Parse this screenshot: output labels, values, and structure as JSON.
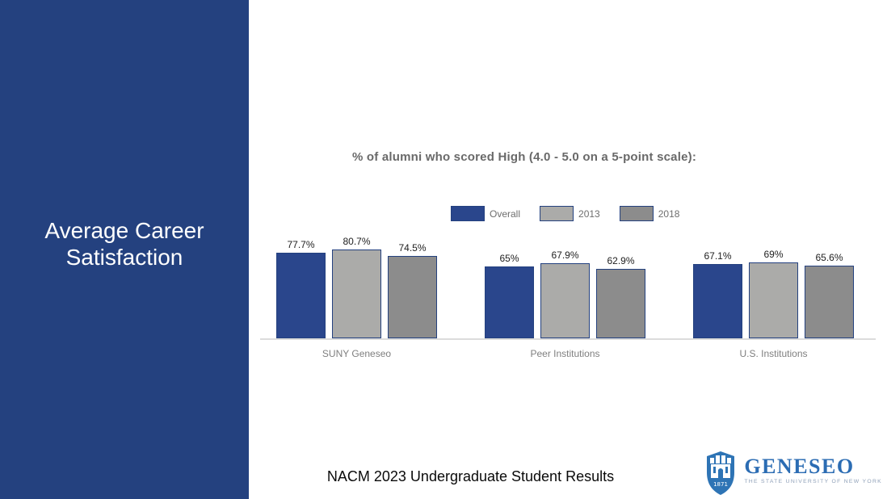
{
  "sidebar": {
    "title": "Average Career\nSatisfaction",
    "bg_color": "#24417F",
    "text_color": "#ffffff"
  },
  "chart_data": {
    "type": "bar",
    "title": "% of alumni who scored High (4.0 - 5.0 on a 5-point scale):",
    "categories": [
      "SUNY Geneseo",
      "Peer Institutions",
      "U.S. Institutions"
    ],
    "series": [
      {
        "name": "Overall",
        "color": "#2A468C",
        "values": [
          77.7,
          65,
          67.1
        ],
        "labels": [
          "77.7%",
          "65%",
          "67.1%"
        ]
      },
      {
        "name": "2013",
        "color": "#ABABA9",
        "values": [
          80.7,
          67.9,
          69
        ],
        "labels": [
          "80.7%",
          "67.9%",
          "69%"
        ]
      },
      {
        "name": "2018",
        "color": "#8C8C8C",
        "values": [
          74.5,
          62.9,
          65.6
        ],
        "labels": [
          "74.5%",
          "62.9%",
          "65.6%"
        ]
      }
    ],
    "ylim": [
      0,
      100
    ],
    "grid": false,
    "legend_position": "top",
    "bar_border_color": "#24417F",
    "axis_line_color": "#DCDCDC"
  },
  "footer": {
    "caption": "NACM 2023 Undergraduate Student Results"
  },
  "logo": {
    "wordmark": "GENESEO",
    "tagline": "THE STATE UNIVERSITY OF NEW YORK",
    "shield_year": "1871",
    "color": "#2B6CB3",
    "shield_color": "#2E74B5"
  }
}
